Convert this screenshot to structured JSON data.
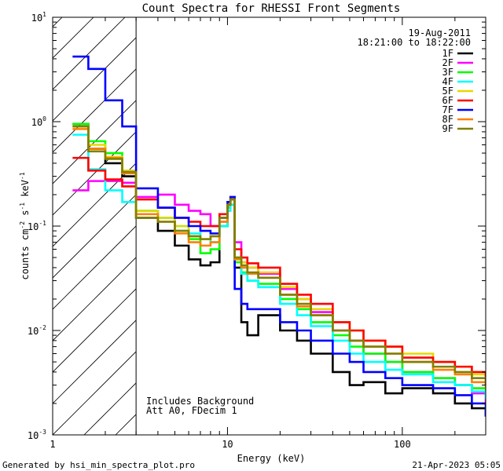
{
  "footer": {
    "generated_by": "Generated by hsi_min_spectra_plot.pro",
    "timestamp": "21-Apr-2023 05:05"
  },
  "chart_data": {
    "type": "line",
    "title": "Count Spectra for RHESSI Front Segments",
    "xlabel": "Energy (keV)",
    "ylabel_parts": [
      "counts cm",
      "-2",
      " s",
      "-1",
      " keV",
      "-1"
    ],
    "xscale": "log",
    "yscale": "log",
    "xlim": [
      1,
      300
    ],
    "ylim": [
      0.001,
      10
    ],
    "x_ticks": [
      {
        "value": 1,
        "label": "1"
      },
      {
        "value": 10,
        "label": "10"
      },
      {
        "value": 100,
        "label": "100"
      }
    ],
    "y_ticks": [
      {
        "value": 0.001,
        "mant": "10",
        "exp": "-3"
      },
      {
        "value": 0.01,
        "mant": "10",
        "exp": "-2"
      },
      {
        "value": 0.1,
        "mant": "10",
        "exp": "-1"
      },
      {
        "value": 1,
        "mant": "10",
        "exp": "0"
      },
      {
        "value": 10,
        "mant": "10",
        "exp": "1"
      }
    ],
    "hatch_region": [
      1,
      3
    ],
    "date": "19-Aug-2011",
    "time_range": "18:21:00 to 18:22:00",
    "annotations": [
      "Includes Background",
      "Att A0, FDecim 1"
    ],
    "legend_position": "top-right",
    "series": [
      {
        "name": "1F",
        "color": "#000000",
        "x": [
          1.3,
          1.6,
          2.0,
          2.5,
          3.0,
          4,
          5,
          6,
          7,
          8,
          9,
          10,
          10.4,
          11,
          12,
          13,
          15,
          20,
          25,
          30,
          40,
          50,
          60,
          80,
          100,
          150,
          200,
          250,
          300
        ],
        "values": [
          0.95,
          0.55,
          0.4,
          0.3,
          0.12,
          0.09,
          0.065,
          0.048,
          0.042,
          0.045,
          0.1,
          0.15,
          0.18,
          0.04,
          0.012,
          0.009,
          0.014,
          0.01,
          0.008,
          0.006,
          0.004,
          0.003,
          0.0032,
          0.0025,
          0.0028,
          0.0025,
          0.002,
          0.0018,
          0.0015
        ]
      },
      {
        "name": "2F",
        "color": "#ff00ff",
        "x": [
          1.3,
          1.6,
          2.0,
          2.5,
          3.0,
          4,
          5,
          6,
          7,
          8,
          9,
          10,
          10.4,
          11,
          12,
          13,
          15,
          20,
          25,
          30,
          40,
          50,
          60,
          80,
          100,
          150,
          200,
          250,
          300
        ],
        "values": [
          0.22,
          0.27,
          0.27,
          0.26,
          0.19,
          0.2,
          0.16,
          0.14,
          0.13,
          0.1,
          0.11,
          0.16,
          0.19,
          0.07,
          0.045,
          0.04,
          0.035,
          0.025,
          0.02,
          0.015,
          0.01,
          0.008,
          0.006,
          0.005,
          0.004,
          0.0035,
          0.003,
          0.0025,
          0.002
        ]
      },
      {
        "name": "3F",
        "color": "#00ff00",
        "x": [
          1.3,
          1.6,
          2.0,
          2.5,
          3.0,
          4,
          5,
          6,
          7,
          8,
          9,
          10,
          10.4,
          11,
          12,
          13,
          15,
          20,
          25,
          30,
          40,
          50,
          60,
          80,
          100,
          150,
          200,
          250,
          300
        ],
        "values": [
          0.95,
          0.65,
          0.5,
          0.33,
          0.14,
          0.12,
          0.09,
          0.075,
          0.055,
          0.06,
          0.1,
          0.15,
          0.18,
          0.045,
          0.036,
          0.03,
          0.028,
          0.02,
          0.016,
          0.012,
          0.009,
          0.007,
          0.006,
          0.005,
          0.004,
          0.0035,
          0.003,
          0.0028,
          0.0024
        ]
      },
      {
        "name": "4F",
        "color": "#00ffff",
        "x": [
          1.3,
          1.6,
          2.0,
          2.5,
          3.0,
          4,
          5,
          6,
          7,
          8,
          9,
          10,
          10.4,
          11,
          12,
          13,
          15,
          20,
          25,
          30,
          40,
          50,
          60,
          80,
          100,
          150,
          200,
          250,
          300
        ],
        "values": [
          0.75,
          0.35,
          0.22,
          0.17,
          0.14,
          0.12,
          0.1,
          0.085,
          0.075,
          0.07,
          0.1,
          0.14,
          0.16,
          0.05,
          0.035,
          0.03,
          0.026,
          0.018,
          0.014,
          0.011,
          0.008,
          0.006,
          0.005,
          0.0042,
          0.0038,
          0.0032,
          0.003,
          0.0026,
          0.0022
        ]
      },
      {
        "name": "5F",
        "color": "#e6d800",
        "x": [
          1.3,
          1.6,
          2.0,
          2.5,
          3.0,
          4,
          5,
          6,
          7,
          8,
          9,
          10,
          10.4,
          11,
          12,
          13,
          15,
          20,
          25,
          30,
          40,
          50,
          60,
          80,
          100,
          150,
          200,
          250,
          300
        ],
        "values": [
          0.9,
          0.6,
          0.46,
          0.34,
          0.14,
          0.12,
          0.1,
          0.08,
          0.075,
          0.08,
          0.12,
          0.17,
          0.19,
          0.05,
          0.045,
          0.04,
          0.036,
          0.026,
          0.02,
          0.016,
          0.012,
          0.01,
          0.008,
          0.007,
          0.006,
          0.005,
          0.0045,
          0.0038,
          0.0032
        ]
      },
      {
        "name": "6F",
        "color": "#ff0000",
        "x": [
          1.3,
          1.6,
          2.0,
          2.5,
          3.0,
          4,
          5,
          6,
          7,
          8,
          9,
          10,
          10.4,
          11,
          12,
          13,
          15,
          20,
          25,
          30,
          40,
          50,
          60,
          80,
          100,
          150,
          200,
          250,
          300
        ],
        "values": [
          0.45,
          0.34,
          0.28,
          0.24,
          0.18,
          0.15,
          0.12,
          0.11,
          0.1,
          0.1,
          0.13,
          0.16,
          0.18,
          0.06,
          0.05,
          0.044,
          0.04,
          0.028,
          0.022,
          0.018,
          0.012,
          0.01,
          0.008,
          0.007,
          0.0055,
          0.005,
          0.0045,
          0.004,
          0.0036
        ]
      },
      {
        "name": "7F",
        "color": "#0000ff",
        "x": [
          1.3,
          1.6,
          2.0,
          2.5,
          3.0,
          4,
          5,
          6,
          7,
          8,
          9,
          10,
          10.4,
          11,
          12,
          13,
          15,
          20,
          25,
          30,
          40,
          50,
          60,
          80,
          100,
          150,
          200,
          250,
          300
        ],
        "values": [
          4.2,
          3.2,
          1.6,
          0.9,
          0.23,
          0.15,
          0.12,
          0.1,
          0.09,
          0.085,
          0.12,
          0.17,
          0.19,
          0.025,
          0.018,
          0.016,
          0.016,
          0.012,
          0.01,
          0.008,
          0.006,
          0.005,
          0.004,
          0.0035,
          0.003,
          0.0028,
          0.0024,
          0.002,
          0.0015
        ]
      },
      {
        "name": "8F",
        "color": "#ff8000",
        "x": [
          1.3,
          1.6,
          2.0,
          2.5,
          3.0,
          4,
          5,
          6,
          7,
          8,
          9,
          10,
          10.4,
          11,
          12,
          13,
          15,
          20,
          25,
          30,
          40,
          50,
          60,
          80,
          100,
          150,
          200,
          250,
          300
        ],
        "values": [
          0.85,
          0.55,
          0.45,
          0.32,
          0.13,
          0.11,
          0.085,
          0.07,
          0.065,
          0.07,
          0.11,
          0.16,
          0.18,
          0.048,
          0.04,
          0.035,
          0.032,
          0.022,
          0.017,
          0.014,
          0.01,
          0.008,
          0.007,
          0.006,
          0.005,
          0.0042,
          0.0038,
          0.0032,
          0.0028
        ]
      },
      {
        "name": "9F",
        "color": "#808000",
        "x": [
          1.3,
          1.6,
          2.0,
          2.5,
          3.0,
          4,
          5,
          6,
          7,
          8,
          9,
          10,
          10.4,
          11,
          12,
          13,
          15,
          20,
          25,
          30,
          40,
          50,
          60,
          80,
          100,
          150,
          200,
          250,
          300
        ],
        "values": [
          0.9,
          0.52,
          0.44,
          0.33,
          0.12,
          0.11,
          0.09,
          0.08,
          0.075,
          0.08,
          0.12,
          0.16,
          0.18,
          0.05,
          0.042,
          0.036,
          0.032,
          0.022,
          0.018,
          0.014,
          0.01,
          0.008,
          0.007,
          0.006,
          0.005,
          0.0045,
          0.004,
          0.0035,
          0.003
        ]
      }
    ]
  }
}
